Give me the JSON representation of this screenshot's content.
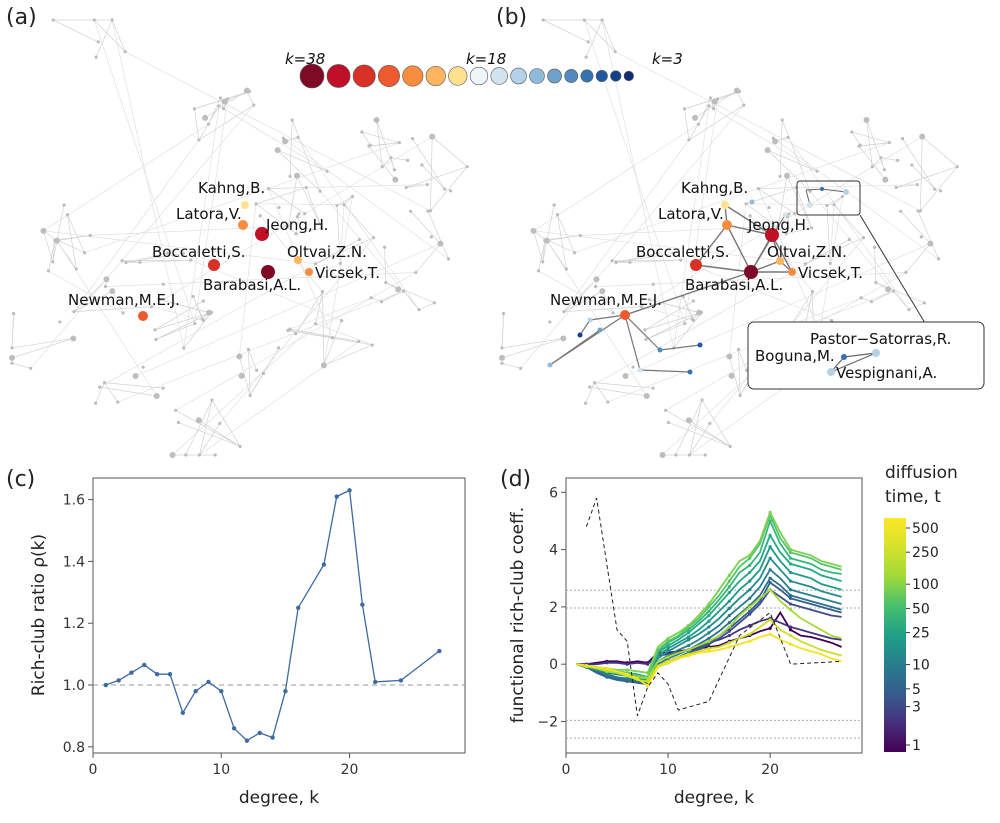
{
  "panels": {
    "a": "(a)",
    "b": "(b)",
    "c": "(c)",
    "d": "(d)"
  },
  "node_scale": {
    "labels": [
      "k=38",
      "k=18",
      "k=3"
    ],
    "colors": [
      "#7f0a26",
      "#be1128",
      "#d83128",
      "#ee5a2e",
      "#f98d3f",
      "#fdb55e",
      "#fde190",
      "#eef5f9",
      "#d0e3ef",
      "#b3d2e8",
      "#8fbadb",
      "#6ea2cc",
      "#5289bf",
      "#3572b0",
      "#1f5aa0",
      "#12418a",
      "#0e2d75"
    ]
  },
  "network_a": {
    "labels": [
      "Kahng,B.",
      "Latora,V.",
      "Jeong,H.",
      "Boccaletti,S.",
      "Oltvai,Z.N.",
      "Vicsek,T.",
      "Barabasi,A.L.",
      "Newman,M.E.J."
    ]
  },
  "network_b": {
    "labels": [
      "Kahng,B.",
      "Latora,V.",
      "Jeong,H.",
      "Boccaletti,S.",
      "Oltvai,Z.N.",
      "Vicsek,T.",
      "Barabasi,A.L.",
      "Newman,M.E.J."
    ],
    "inset_labels": [
      "Pastor−Satorras,R.",
      "Boguna,M.",
      "Vespignani,A."
    ]
  },
  "chart_data": [
    {
      "type": "line",
      "panel": "(c)",
      "xlabel": "degree, k",
      "ylabel": "Rich-club ratio ρ(k)",
      "xlim": [
        0,
        29
      ],
      "ylim": [
        0.78,
        1.67
      ],
      "xticks": [
        0,
        10,
        20
      ],
      "yticks": [
        0.8,
        1.0,
        1.2,
        1.4,
        1.6
      ],
      "reference_line": 1.0,
      "series": [
        {
          "name": "rich-club ratio",
          "color": "#3d6aa0",
          "x": [
            1,
            2,
            3,
            4,
            5,
            6,
            7,
            8,
            9,
            10,
            11,
            12,
            13,
            14,
            15,
            16,
            18,
            19,
            20,
            21,
            22,
            24,
            27
          ],
          "y": [
            1.0,
            1.015,
            1.04,
            1.065,
            1.035,
            1.035,
            0.91,
            0.98,
            1.01,
            0.98,
            0.86,
            0.82,
            0.845,
            0.83,
            0.98,
            1.25,
            1.39,
            1.61,
            1.63,
            1.26,
            1.01,
            1.015,
            1.11
          ]
        }
      ]
    },
    {
      "type": "line",
      "panel": "(d)",
      "xlabel": "degree, k",
      "ylabel": "functional rich-club coeff.",
      "xlim": [
        0,
        29
      ],
      "ylim": [
        -3.1,
        6.5
      ],
      "xticks": [
        0,
        10,
        20
      ],
      "yticks": [
        -2,
        0,
        2,
        4,
        6
      ],
      "reference_lines": [
        2.58,
        1.96,
        -1.96,
        -2.58
      ],
      "dashed_series": {
        "name": "dashed",
        "x": [
          2,
          3,
          5,
          6,
          7,
          8,
          9,
          10,
          11,
          14,
          17,
          20,
          22,
          27
        ],
        "y": [
          4.8,
          5.8,
          1.2,
          0.8,
          -1.8,
          -0.8,
          -0.3,
          -0.7,
          -1.6,
          -1.3,
          1.0,
          1.8,
          0.0,
          0.1
        ]
      },
      "x": [
        1,
        2,
        3,
        4,
        5,
        6,
        7,
        8,
        9,
        10,
        11,
        12,
        13,
        14,
        15,
        16,
        17,
        18,
        19,
        20,
        21,
        22,
        23,
        24,
        25,
        26,
        27
      ],
      "series": [
        {
          "name": "t=500",
          "color": "#f2e41e",
          "y": [
            0,
            -0.05,
            -0.1,
            -0.15,
            -0.25,
            -0.35,
            -0.5,
            -0.75,
            -0.1,
            0.05,
            0.2,
            0.3,
            0.4,
            0.45,
            0.5,
            0.6,
            0.7,
            0.8,
            0.95,
            1.05,
            0.85,
            0.7,
            0.55,
            0.45,
            0.35,
            0.2,
            0.1
          ]
        },
        {
          "name": "t=350",
          "color": "#c9df25",
          "y": [
            0,
            -0.05,
            -0.15,
            -0.2,
            -0.3,
            -0.4,
            -0.55,
            -0.6,
            -0.05,
            0.1,
            0.25,
            0.35,
            0.45,
            0.55,
            0.6,
            0.75,
            0.9,
            1.05,
            1.3,
            1.55,
            1.2,
            1.0,
            0.8,
            0.65,
            0.5,
            0.4,
            0.3
          ]
        },
        {
          "name": "t=250",
          "color": "#a5db36",
          "y": [
            0,
            -0.08,
            -0.15,
            -0.25,
            -0.3,
            -0.4,
            -0.45,
            -0.5,
            0.1,
            0.25,
            0.4,
            0.5,
            0.65,
            0.8,
            1.0,
            1.3,
            1.7,
            2.0,
            2.3,
            2.6,
            2.2,
            1.9,
            1.6,
            1.4,
            1.2,
            1.0,
            0.9
          ]
        },
        {
          "name": "t=150",
          "color": "#7ad151",
          "y": [
            0,
            -0.05,
            -0.1,
            -0.15,
            -0.2,
            -0.2,
            -0.25,
            -0.3,
            0.6,
            0.9,
            1.1,
            1.35,
            1.7,
            2.1,
            2.6,
            3.1,
            3.6,
            3.8,
            4.3,
            5.3,
            4.6,
            4.0,
            3.9,
            3.8,
            3.6,
            3.5,
            3.4
          ]
        },
        {
          "name": "t=100",
          "color": "#54c568",
          "y": [
            0,
            -0.05,
            -0.1,
            -0.2,
            -0.25,
            -0.3,
            -0.4,
            -0.45,
            0.5,
            0.8,
            1.0,
            1.3,
            1.6,
            2.0,
            2.4,
            2.9,
            3.4,
            3.7,
            4.2,
            5.2,
            4.4,
            3.9,
            3.8,
            3.7,
            3.5,
            3.4,
            3.3
          ]
        },
        {
          "name": "t=70",
          "color": "#35b779",
          "y": [
            0,
            -0.05,
            -0.15,
            -0.25,
            -0.3,
            -0.35,
            -0.4,
            -0.5,
            0.45,
            0.75,
            0.95,
            1.2,
            1.5,
            1.85,
            2.25,
            2.7,
            3.2,
            3.45,
            3.9,
            5.0,
            4.2,
            3.7,
            3.6,
            3.5,
            3.3,
            3.2,
            3.15
          ]
        },
        {
          "name": "t=50",
          "color": "#23a983",
          "y": [
            0,
            -0.05,
            -0.1,
            -0.15,
            -0.25,
            -0.3,
            -0.35,
            -0.45,
            0.4,
            0.65,
            0.85,
            1.1,
            1.4,
            1.7,
            2.1,
            2.5,
            2.9,
            3.2,
            3.6,
            4.5,
            3.9,
            3.5,
            3.4,
            3.3,
            3.1,
            3.0,
            2.9
          ]
        },
        {
          "name": "t=35",
          "color": "#1f9a8a",
          "y": [
            0,
            -0.05,
            -0.15,
            -0.25,
            -0.3,
            -0.35,
            -0.4,
            -0.5,
            0.3,
            0.55,
            0.75,
            0.95,
            1.2,
            1.5,
            1.85,
            2.2,
            2.6,
            2.9,
            3.3,
            4.1,
            3.6,
            3.2,
            3.1,
            3.0,
            2.8,
            2.7,
            2.6
          ]
        },
        {
          "name": "t=25",
          "color": "#228c8d",
          "y": [
            0,
            -0.1,
            -0.2,
            -0.3,
            -0.35,
            -0.4,
            -0.5,
            -0.55,
            0.2,
            0.45,
            0.65,
            0.85,
            1.05,
            1.3,
            1.6,
            1.95,
            2.3,
            2.6,
            3.0,
            3.7,
            3.3,
            2.9,
            2.8,
            2.7,
            2.55,
            2.45,
            2.35
          ]
        },
        {
          "name": "t=15",
          "color": "#277e8e",
          "y": [
            0,
            -0.1,
            -0.2,
            -0.35,
            -0.45,
            -0.5,
            -0.55,
            -0.6,
            0.1,
            0.3,
            0.5,
            0.65,
            0.85,
            1.1,
            1.35,
            1.7,
            2.0,
            2.3,
            2.7,
            3.3,
            3.0,
            2.6,
            2.5,
            2.4,
            2.3,
            2.2,
            2.1
          ]
        },
        {
          "name": "t=10",
          "color": "#2d6f8e",
          "y": [
            0,
            -0.1,
            -0.25,
            -0.4,
            -0.5,
            -0.55,
            -0.6,
            -0.65,
            0.0,
            0.2,
            0.35,
            0.5,
            0.7,
            0.9,
            1.15,
            1.45,
            1.75,
            2.05,
            2.4,
            3.0,
            2.75,
            2.4,
            2.3,
            2.2,
            2.1,
            2.0,
            1.9
          ]
        },
        {
          "name": "t=7",
          "color": "#35608d",
          "y": [
            0,
            -0.1,
            -0.3,
            -0.45,
            -0.55,
            -0.6,
            -0.65,
            -0.7,
            -0.1,
            0.1,
            0.25,
            0.4,
            0.55,
            0.75,
            1.0,
            1.25,
            1.55,
            1.85,
            2.2,
            2.85,
            2.6,
            2.3,
            2.2,
            2.1,
            2.0,
            1.9,
            1.8
          ]
        },
        {
          "name": "t=5",
          "color": "#3e4c8a",
          "y": [
            0,
            -0.1,
            -0.2,
            -0.3,
            -0.35,
            -0.4,
            -0.45,
            -0.5,
            -0.1,
            0.05,
            0.2,
            0.35,
            0.5,
            0.7,
            0.9,
            1.15,
            1.45,
            1.75,
            2.1,
            2.6,
            2.35,
            2.1,
            2.0,
            1.9,
            1.8,
            1.7,
            1.65
          ]
        },
        {
          "name": "t=3",
          "color": "#463480",
          "y": [
            0,
            0.0,
            0.0,
            0.05,
            0.05,
            0.0,
            0.05,
            0.0,
            0.3,
            0.35,
            0.4,
            0.5,
            0.6,
            0.75,
            0.85,
            1.0,
            1.2,
            1.35,
            1.5,
            1.6,
            1.45,
            1.3,
            1.2,
            1.1,
            1.0,
            0.9,
            0.85
          ]
        },
        {
          "name": "t=1",
          "color": "#440154",
          "y": [
            0,
            0.0,
            0.05,
            0.1,
            0.1,
            0.05,
            0.1,
            0.05,
            0.4,
            0.4,
            0.45,
            0.5,
            0.55,
            0.6,
            0.65,
            0.8,
            0.9,
            1.0,
            1.15,
            1.25,
            1.8,
            1.2,
            1.0,
            0.95,
            0.85,
            0.75,
            0.6
          ]
        }
      ],
      "colorbar": {
        "title_line1": "diffusion",
        "title_line2": "time, t",
        "ticks": [
          "500",
          "250",
          "100",
          "50",
          "25",
          "10",
          "5",
          "3",
          "1"
        ]
      }
    }
  ]
}
